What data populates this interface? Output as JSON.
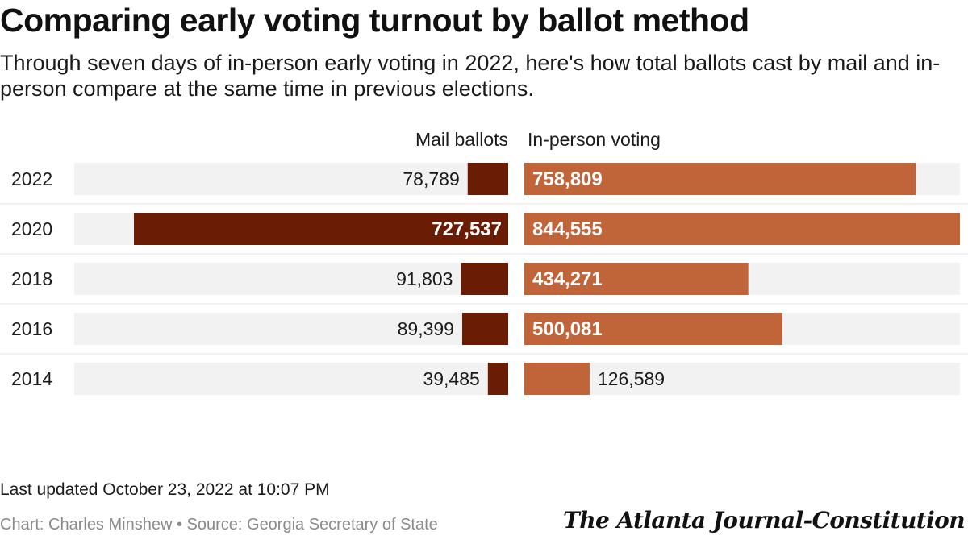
{
  "title": "Comparing early voting turnout by ballot method",
  "subtitle": "Through seven days of in-person early voting in 2022, here's how total ballots cast by mail and in-person compare at the same time in previous elections.",
  "footer": {
    "updated": "Last updated October 23, 2022 at 10:07 PM",
    "credit": "Chart: Charles Minshew • Source: Georgia Secretary of State",
    "logo": "The Atlanta Journal-Constitution"
  },
  "colors": {
    "mail": "#6b1c04",
    "inperson": "#c0643a",
    "track": "#f2f2f2",
    "divider": "#e3e3e3"
  },
  "chart_data": {
    "type": "bar",
    "layout": "diverging-horizontal",
    "categories": [
      "2022",
      "2020",
      "2018",
      "2016",
      "2014"
    ],
    "series": [
      {
        "name": "Mail ballots",
        "labels": [
          "78,789",
          "727,537",
          "91,803",
          "89,399",
          "39,485"
        ],
        "values": [
          78789,
          727537,
          91803,
          89399,
          39485
        ]
      },
      {
        "name": "In-person voting",
        "labels": [
          "758,809",
          "844,555",
          "434,271",
          "500,081",
          "126,589"
        ],
        "values": [
          758809,
          844555,
          434271,
          500081,
          126589
        ]
      }
    ],
    "xlim": [
      0,
      844555
    ]
  }
}
